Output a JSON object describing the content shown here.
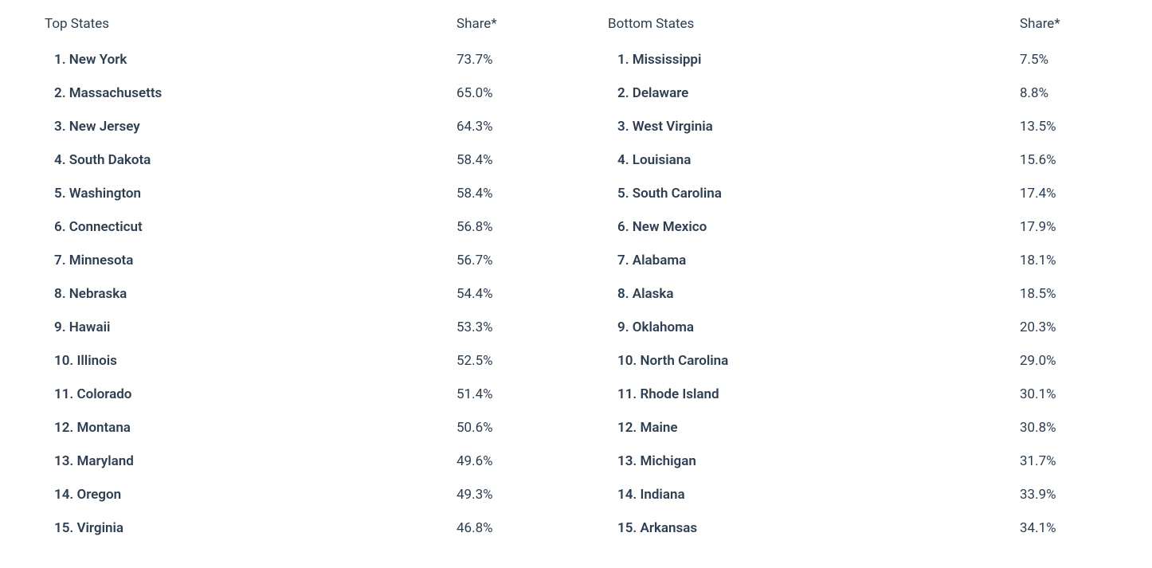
{
  "layout": {
    "text_color": "#2e3e52",
    "background_color": "#ffffff",
    "header_fontsize": 17,
    "row_fontsize": 17,
    "header_fontweight": 400,
    "rank_fontweight": 600,
    "share_fontweight": 400
  },
  "left": {
    "title": "Top States",
    "share_header": "Share*",
    "rows": [
      {
        "rank": "1.",
        "name": "New York",
        "share": "73.7%"
      },
      {
        "rank": "2.",
        "name": "Massachusetts",
        "share": "65.0%"
      },
      {
        "rank": "3.",
        "name": "New Jersey",
        "share": "64.3%"
      },
      {
        "rank": "4.",
        "name": "South Dakota",
        "share": "58.4%"
      },
      {
        "rank": "5.",
        "name": "Washington",
        "share": "58.4%"
      },
      {
        "rank": "6.",
        "name": "Connecticut",
        "share": "56.8%"
      },
      {
        "rank": "7.",
        "name": "Minnesota",
        "share": "56.7%"
      },
      {
        "rank": "8.",
        "name": "Nebraska",
        "share": "54.4%"
      },
      {
        "rank": "9.",
        "name": "Hawaii",
        "share": "53.3%"
      },
      {
        "rank": "10.",
        "name": "Illinois",
        "share": "52.5%"
      },
      {
        "rank": "11.",
        "name": "Colorado",
        "share": "51.4%"
      },
      {
        "rank": "12.",
        "name": "Montana",
        "share": "50.6%"
      },
      {
        "rank": "13.",
        "name": "Maryland",
        "share": "49.6%"
      },
      {
        "rank": "14.",
        "name": "Oregon",
        "share": "49.3%"
      },
      {
        "rank": "15.",
        "name": "Virginia",
        "share": "46.8%"
      }
    ]
  },
  "right": {
    "title": "Bottom States",
    "share_header": "Share*",
    "rows": [
      {
        "rank": "1.",
        "name": "Mississippi",
        "share": "7.5%"
      },
      {
        "rank": "2.",
        "name": "Delaware",
        "share": "8.8%"
      },
      {
        "rank": "3.",
        "name": "West Virginia",
        "share": "13.5%"
      },
      {
        "rank": "4.",
        "name": "Louisiana",
        "share": "15.6%"
      },
      {
        "rank": "5.",
        "name": "South Carolina",
        "share": "17.4%"
      },
      {
        "rank": "6.",
        "name": "New Mexico",
        "share": "17.9%"
      },
      {
        "rank": "7.",
        "name": "Alabama",
        "share": "18.1%"
      },
      {
        "rank": "8.",
        "name": "Alaska",
        "share": "18.5%"
      },
      {
        "rank": "9.",
        "name": "Oklahoma",
        "share": "20.3%"
      },
      {
        "rank": "10.",
        "name": "North Carolina",
        "share": "29.0%"
      },
      {
        "rank": "11.",
        "name": "Rhode Island",
        "share": "30.1%"
      },
      {
        "rank": "12.",
        "name": "Maine",
        "share": "30.8%"
      },
      {
        "rank": "13.",
        "name": "Michigan",
        "share": "31.7%"
      },
      {
        "rank": "14.",
        "name": "Indiana",
        "share": "33.9%"
      },
      {
        "rank": "15.",
        "name": "Arkansas",
        "share": "34.1%"
      }
    ]
  }
}
